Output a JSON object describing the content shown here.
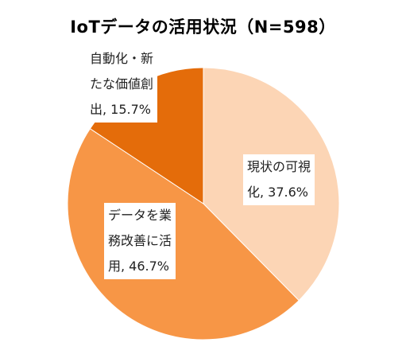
{
  "chart_data": {
    "type": "pie",
    "title": "IoTデータの活用状況（N=598）",
    "slices": [
      {
        "label": "現状の可視化",
        "value": 37.6,
        "value_text": "37.6%",
        "color": "#FCD5B5"
      },
      {
        "label": "データを業務改善に活用",
        "value": 46.7,
        "value_text": "46.7%",
        "color": "#F79646"
      },
      {
        "label": "自動化・新たな価値創出",
        "value": 15.7,
        "value_text": "15.7%",
        "color": "#E46C0A"
      }
    ],
    "start_angle": "12 o'clock",
    "direction": "clockwise",
    "legend": "none",
    "data_labels": [
      {
        "lines": [
          "現状の可視",
          "化, 37.6%"
        ]
      },
      {
        "lines": [
          "データを業",
          "務改善に活",
          "用, 46.7%"
        ]
      },
      {
        "lines": [
          "自動化・新",
          "たな価値創",
          "出, 15.7%"
        ]
      }
    ]
  }
}
